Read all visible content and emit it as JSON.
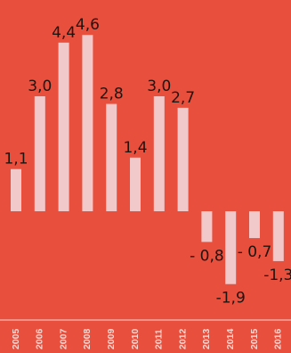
{
  "colors": {
    "background": "#e94f3d",
    "bar": "#f1c9cb",
    "baseline": "#f3d3d1",
    "label": "#1e1410",
    "tick_label": "#f6d9d4"
  },
  "chart_data": {
    "type": "bar",
    "categories": [
      "2005",
      "2006",
      "2007",
      "2008",
      "2009",
      "2010",
      "2011",
      "2012",
      "2013",
      "2014",
      "2015",
      "2016"
    ],
    "values": [
      1.1,
      3.0,
      4.4,
      4.6,
      2.8,
      1.4,
      3.0,
      2.7,
      -0.8,
      -1.9,
      -0.7,
      -1.3
    ],
    "data_labels": [
      "1,1",
      "3,0",
      "4,4",
      "4,6",
      "2,8",
      "1,4",
      "3,0",
      "2,7",
      "- 0,8",
      "-1,9",
      "- 0,7",
      "-1,3"
    ],
    "title": "",
    "xlabel": "",
    "ylabel": "",
    "ylim": [
      -2.0,
      5.0
    ],
    "grid": false,
    "legend": "none",
    "x_tick_rotation": "vertical"
  }
}
